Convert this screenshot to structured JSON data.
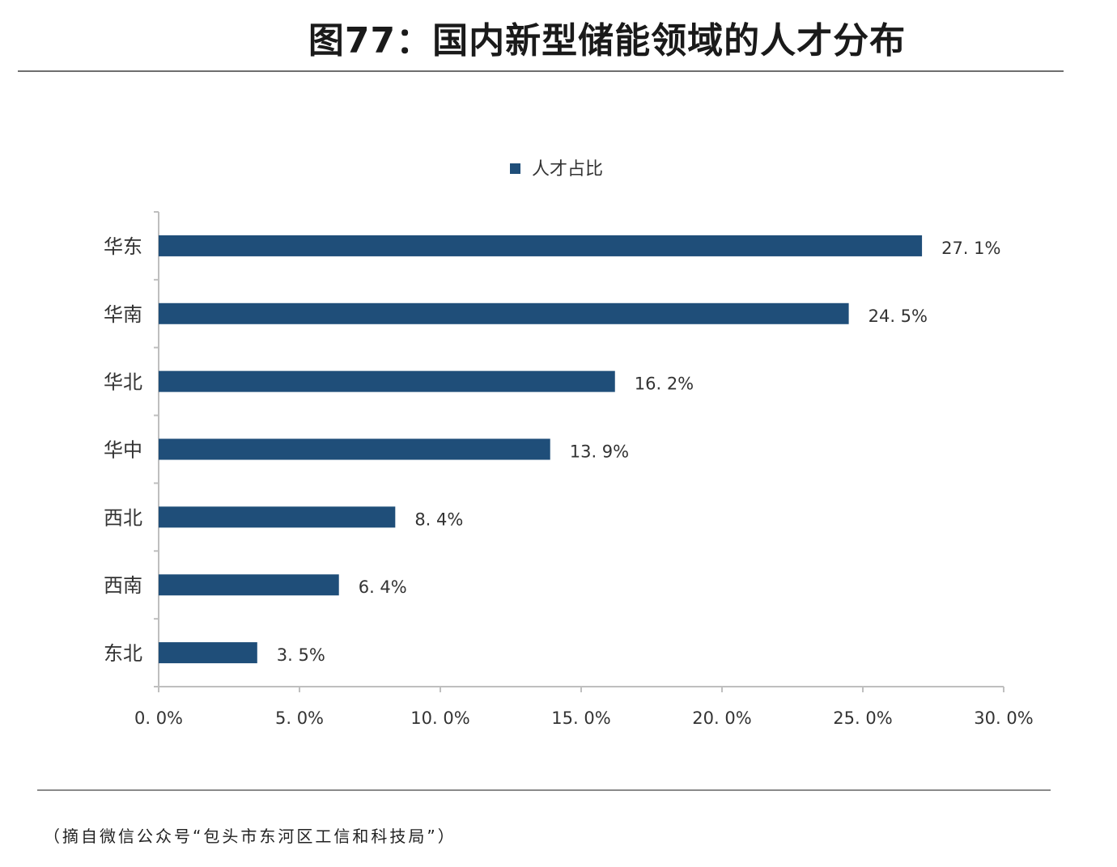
{
  "title": "图77：国内新型储能领域的人才分布",
  "source_note": "（摘自微信公众号“包头市东河区工信和科技局”）",
  "colors": {
    "bar": "#1f4e79",
    "axis": "#bfbfbf",
    "text": "#333333"
  },
  "chart_data": {
    "type": "bar",
    "orientation": "horizontal",
    "categories": [
      "华东",
      "华南",
      "华北",
      "华中",
      "西北",
      "西南",
      "东北"
    ],
    "series": [
      {
        "name": "人才占比",
        "values": [
          27.1,
          24.5,
          16.2,
          13.9,
          8.4,
          6.4,
          3.5
        ],
        "labels": [
          "27. 1%",
          "24. 5%",
          "16. 2%",
          "13. 9%",
          "8. 4%",
          "6. 4%",
          "3. 5%"
        ]
      }
    ],
    "xlim": [
      0,
      30
    ],
    "xticks": [
      0,
      5,
      10,
      15,
      20,
      25,
      30
    ],
    "xtick_labels": [
      "0. 0%",
      "5. 0%",
      "10. 0%",
      "15. 0%",
      "20. 0%",
      "25. 0%",
      "30. 0%"
    ],
    "legend": "top-center",
    "grid": false
  }
}
